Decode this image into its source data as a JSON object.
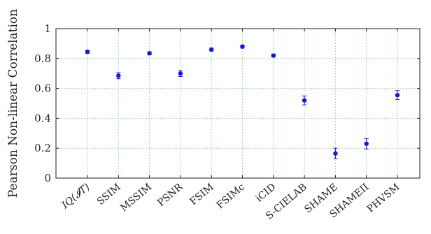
{
  "chart_data": {
    "type": "scatter",
    "title": "",
    "xlabel": "",
    "ylabel": "Pearson Non-linear Correlation",
    "ylim": [
      0,
      1
    ],
    "yticks": [
      "0",
      "0.2",
      "0.4",
      "0.6",
      "0.8",
      "1"
    ],
    "grid": true,
    "error_bars": true,
    "marker_color": "#1515e0",
    "grid_color": "#a8d8a8",
    "categories": [
      "IQ(𝓘T)",
      "SSIM",
      "MSSIM",
      "PSNR",
      "FSIM",
      "FSIMc",
      "iCID",
      "S-CIELAB",
      "SHAME",
      "SHAMEII",
      "PHVSM"
    ],
    "values": [
      0.845,
      0.685,
      0.835,
      0.7,
      0.86,
      0.88,
      0.82,
      0.52,
      0.165,
      0.23,
      0.555
    ],
    "errors": [
      0.01,
      0.02,
      0.01,
      0.02,
      0.01,
      0.01,
      0.01,
      0.03,
      0.035,
      0.035,
      0.03
    ]
  }
}
